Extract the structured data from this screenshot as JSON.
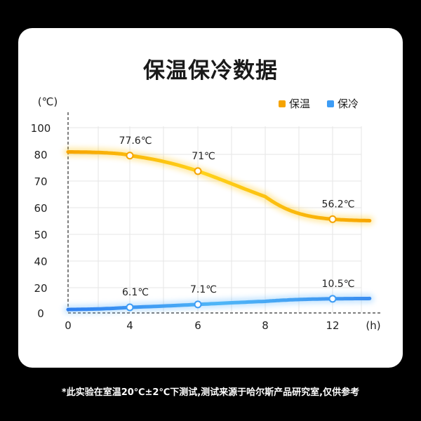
{
  "chart_data": {
    "type": "line",
    "title": "保温保冷数据",
    "ylabel": "(℃)",
    "xlabel": "(h)",
    "x_ticks": [
      "0",
      "4",
      "6",
      "8",
      "12"
    ],
    "y_ticks": [
      "100",
      "80",
      "70",
      "60",
      "50",
      "40",
      "20",
      "0"
    ],
    "grid": true,
    "legend_position": "top-right",
    "series": [
      {
        "name": "保温",
        "color": "#f5a300",
        "points": [
          {
            "x": "4",
            "value": 77.6,
            "label": "77.6℃"
          },
          {
            "x": "6",
            "value": 71,
            "label": "71℃"
          },
          {
            "x": "12",
            "value": 56.2,
            "label": "56.2℃"
          }
        ]
      },
      {
        "name": "保冷",
        "color": "#3d9cf5",
        "points": [
          {
            "x": "4",
            "value": 6.1,
            "label": "6.1℃"
          },
          {
            "x": "6",
            "value": 7.1,
            "label": "7.1℃"
          },
          {
            "x": "12",
            "value": 10.5,
            "label": "10.5℃"
          }
        ]
      }
    ]
  },
  "footnote": "*此实验在室温20℃±2℃下测试,测试来源于哈尔斯产品研究室,仅供参考"
}
